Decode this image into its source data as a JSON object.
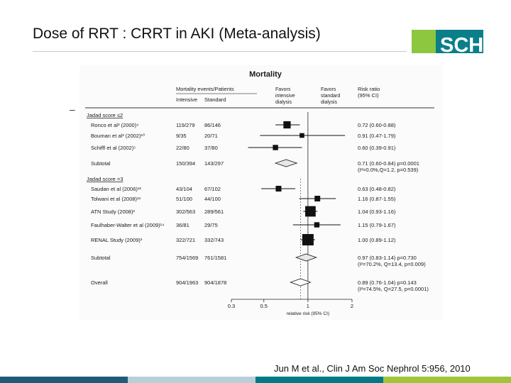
{
  "slide": {
    "title": "Dose of RRT : CRRT in AKI (Meta-analysis)",
    "logo_text": "SCH",
    "bullet": "–",
    "citation": "Jun M et al., Clin J Am Soc Nephrol 5:956, 2010",
    "colors": {
      "logo_green": "#8dc63f",
      "logo_teal": "#006b77",
      "bottom_bar": [
        "#1f5c7a",
        "#b8cfd8",
        "#007a87",
        "#9fc63a"
      ]
    }
  },
  "chart_data": {
    "type": "forest",
    "title": "Mortality",
    "header": {
      "events": "Mortality events/Patients",
      "intensive": "Intensive",
      "standard": "Standard",
      "favors_intensive": [
        "Favors",
        "intensive",
        "dialysis"
      ],
      "favors_standard": [
        "Favors",
        "standard",
        "dialysis"
      ],
      "rr": [
        "Risk ratio",
        "(95% CI)"
      ]
    },
    "xlabel": "relative risk (95% CI)",
    "x_scale": "log",
    "xlim": [
      0.3,
      2
    ],
    "ticks": [
      "0.3",
      "0.5",
      "1",
      "2"
    ],
    "tick_values": [
      0.3,
      0.5,
      1,
      2
    ],
    "rows": [
      {
        "kind": "group",
        "label": "Jadad score ≤2"
      },
      {
        "kind": "study",
        "label": "Ronco et al³ (2000)⁴",
        "intensive": "119/279",
        "standard": "86/146",
        "rr": 0.72,
        "lo": 0.6,
        "hi": 0.88,
        "rr_text": "0.72 (0.60-0.88)"
      },
      {
        "kind": "study",
        "label": "Bouman et al³ (2002)¹⁰",
        "intensive": "9/35",
        "standard": "20/71",
        "rr": 0.91,
        "lo": 0.47,
        "hi": 1.79,
        "rr_text": "0.91 (0.47-1.79)"
      },
      {
        "kind": "study",
        "label": "Schiffl et al (2002)⁵",
        "intensive": "22/80",
        "standard": "37/80",
        "rr": 0.6,
        "lo": 0.39,
        "hi": 0.91,
        "rr_text": "0.60 (0.39-0.91)"
      },
      {
        "kind": "subtotal",
        "label": "Subtotal",
        "intensive": "150/394",
        "standard": "143/297",
        "rr": 0.71,
        "lo": 0.6,
        "hi": 0.84,
        "rr_text": "0.71 (0.60-0.84) p=0.0001",
        "het": "(I²=0.0%,Q=1.2, p=0.539)"
      },
      {
        "kind": "group",
        "label": "Jadad score =3"
      },
      {
        "kind": "study",
        "label": "Saudan et al (2006)¹²",
        "intensive": "43/104",
        "standard": "67/102",
        "rr": 0.63,
        "lo": 0.48,
        "hi": 0.82,
        "rr_text": "0.63 (0.48-0.82)"
      },
      {
        "kind": "study",
        "label": "Tolwani et al (2008)¹³",
        "intensive": "51/100",
        "standard": "44/100",
        "rr": 1.16,
        "lo": 0.87,
        "hi": 1.55,
        "rr_text": "1.16 (0.87-1.55)"
      },
      {
        "kind": "study",
        "label": "ATN Study (2008)²",
        "intensive": "302/563",
        "standard": "289/561",
        "rr": 1.04,
        "lo": 0.93,
        "hi": 1.16,
        "rr_text": "1.04 (0.93-1.16)"
      },
      {
        "kind": "study",
        "label": "Faulhaber-Walter et al (2009)¹⁴",
        "intensive": "36/81",
        "standard": "29/75",
        "rr": 1.15,
        "lo": 0.79,
        "hi": 1.67,
        "rr_text": "1.15 (0.79-1.67)"
      },
      {
        "kind": "study",
        "label": "RENAL Study (2009)³",
        "intensive": "322/721",
        "standard": "332/743",
        "rr": 1.0,
        "lo": 0.89,
        "hi": 1.12,
        "rr_text": "1.00 (0.89-1.12)"
      },
      {
        "kind": "subtotal",
        "label": "Subtotal",
        "intensive": "754/1569",
        "standard": "761/1581",
        "rr": 0.97,
        "lo": 0.83,
        "hi": 1.14,
        "rr_text": "0.97 (0.83-1.14) p=0.730",
        "het": "(I²=70.2%, Q=13.4, p=0.009)"
      },
      {
        "kind": "overall",
        "label": "Overall",
        "intensive": "904/1963",
        "standard": "904/1878",
        "rr": 0.89,
        "lo": 0.76,
        "hi": 1.04,
        "rr_text": "0.89 (0.76-1.04) p=0.143",
        "het": "(I²=74.5%, Q=27.5, p=0.0001)"
      }
    ]
  }
}
